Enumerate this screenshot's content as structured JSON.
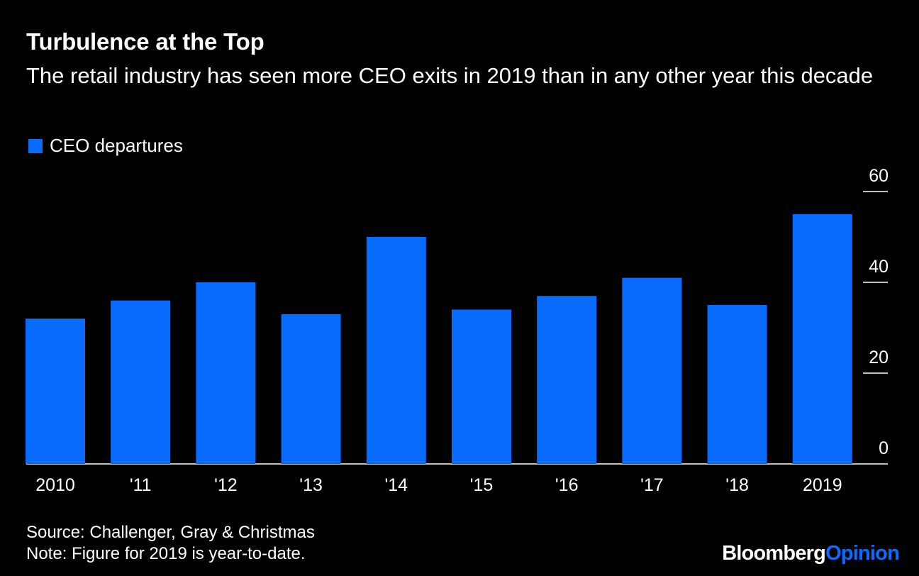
{
  "chart_data": {
    "type": "bar",
    "title": "Turbulence at the Top",
    "subtitle": "The retail industry has seen more CEO exits in 2019 than in any other year this decade",
    "categories": [
      "2010",
      "'11",
      "'12",
      "'13",
      "'14",
      "'15",
      "'16",
      "'17",
      "'18",
      "2019"
    ],
    "series": [
      {
        "name": "CEO departures",
        "color": "#0a6cff",
        "values": [
          32,
          36,
          40,
          33,
          50,
          34,
          37,
          41,
          35,
          55
        ]
      }
    ],
    "ylim": [
      0,
      60
    ],
    "yticks": [
      "0",
      "20",
      "40",
      "60"
    ],
    "y_axis_position": "right",
    "legend_position": "top-left"
  },
  "footer": {
    "source": "Source: Challenger, Gray & Christmas",
    "note": "Note: Figure for 2019 is year-to-date."
  },
  "brand": {
    "part1": "Bloomberg",
    "part2": "Opinion",
    "part2_color": "#0a6cff"
  }
}
